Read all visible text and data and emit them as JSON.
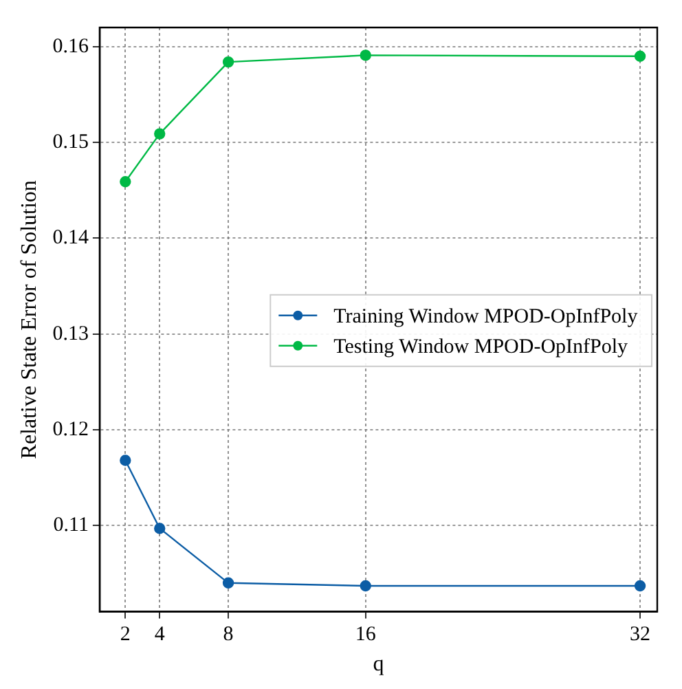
{
  "chart_data": {
    "type": "line",
    "xlabel": "q",
    "ylabel": "Relative State Error of Solution",
    "x": [
      2,
      4,
      8,
      16,
      32
    ],
    "series": [
      {
        "name": "Training Window MPOD-OpInfPoly",
        "color": "#0c5da5",
        "values": [
          0.1168,
          0.1097,
          0.104,
          0.1037,
          0.1037
        ]
      },
      {
        "name": "Testing Window MPOD-OpInfPoly",
        "color": "#00b945",
        "values": [
          0.1459,
          0.1509,
          0.1584,
          0.1591,
          0.159
        ]
      }
    ],
    "xlim": [
      0.5,
      33
    ],
    "xticks": [
      2,
      4,
      8,
      16,
      32
    ],
    "ylim": [
      0.101,
      0.162
    ],
    "yticks": [
      0.11,
      0.12,
      0.13,
      0.14,
      0.15,
      0.16
    ],
    "grid": true,
    "legend": "right",
    "marker": "circle",
    "line_style": "solid"
  }
}
